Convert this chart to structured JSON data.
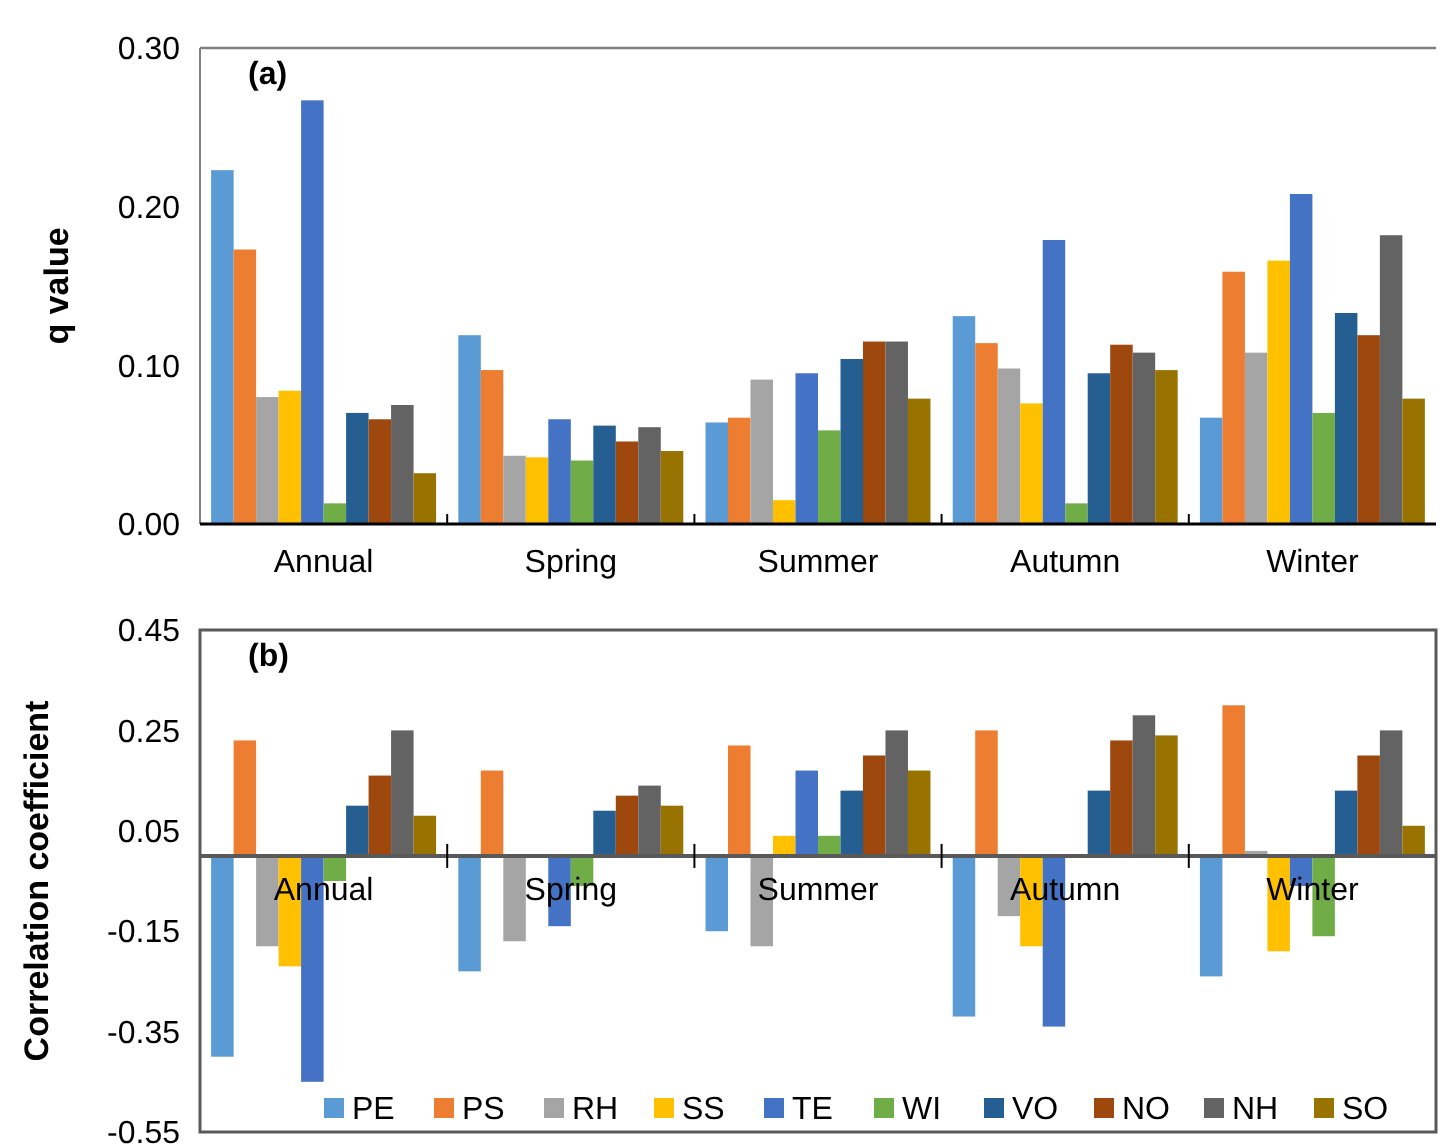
{
  "chart_data": [
    {
      "type": "bar",
      "title": "(a)",
      "ylabel": "q value",
      "categories": [
        "Annual",
        "Spring",
        "Summer",
        "Autumn",
        "Winter"
      ],
      "ylim": [
        0,
        0.3
      ],
      "yticks": [
        {
          "value": 0,
          "label": "0.00"
        },
        {
          "value": 0.1,
          "label": "0.10"
        },
        {
          "value": 0.2,
          "label": "0.20"
        },
        {
          "value": 0.3,
          "label": "0.30"
        }
      ],
      "grid": false,
      "legend": false,
      "series": [
        {
          "color": "#5b9bd5",
          "values": [
            0.223,
            0.119,
            0.064,
            0.131,
            0.067
          ]
        },
        {
          "color": "#ed7d31",
          "values": [
            0.173,
            0.097,
            0.067,
            0.114,
            0.159
          ]
        },
        {
          "color": "#a5a5a5",
          "values": [
            0.08,
            0.043,
            0.091,
            0.098,
            0.108
          ]
        },
        {
          "color": "#ffc000",
          "values": [
            0.084,
            0.042,
            0.015,
            0.076,
            0.166
          ]
        },
        {
          "color": "#4472c4",
          "values": [
            0.267,
            0.066,
            0.095,
            0.179,
            0.208
          ]
        },
        {
          "color": "#70ad47",
          "values": [
            0.013,
            0.04,
            0.059,
            0.013,
            0.07
          ]
        },
        {
          "color": "#255e91",
          "values": [
            0.07,
            0.062,
            0.104,
            0.095,
            0.133
          ]
        },
        {
          "color": "#9e480e",
          "values": [
            0.066,
            0.052,
            0.115,
            0.113,
            0.119
          ]
        },
        {
          "color": "#636363",
          "values": [
            0.075,
            0.061,
            0.115,
            0.108,
            0.182
          ]
        },
        {
          "color": "#997300",
          "values": [
            0.032,
            0.046,
            0.079,
            0.097,
            0.079
          ]
        }
      ]
    },
    {
      "type": "bar",
      "title": "(b)",
      "ylabel": "Correlation coefficient",
      "categories": [
        "Annual",
        "Spring",
        "Summer",
        "Autumn",
        "Winter"
      ],
      "ylim": [
        -0.55,
        0.45
      ],
      "yticks": [
        -0.55,
        -0.35,
        -0.15,
        0.05,
        0.25,
        0.45
      ],
      "grid": false,
      "legend": "bottom",
      "series": [
        {
          "name": "PE",
          "color": "#5b9bd5",
          "values": [
            -0.4,
            -0.23,
            -0.15,
            -0.32,
            -0.24
          ]
        },
        {
          "name": "PS",
          "color": "#ed7d31",
          "values": [
            0.23,
            0.17,
            0.22,
            0.25,
            0.3
          ]
        },
        {
          "name": "RH",
          "color": "#a5a5a5",
          "values": [
            -0.18,
            -0.17,
            -0.18,
            -0.12,
            0.01
          ]
        },
        {
          "name": "SS",
          "color": "#ffc000",
          "values": [
            -0.22,
            0,
            0.04,
            -0.18,
            -0.19
          ]
        },
        {
          "name": "TE",
          "color": "#4472c4",
          "values": [
            -0.45,
            -0.14,
            0.17,
            -0.34,
            -0.06
          ]
        },
        {
          "name": "WI",
          "color": "#70ad47",
          "values": [
            -0.05,
            -0.06,
            0.04,
            0,
            -0.16
          ]
        },
        {
          "name": "VO",
          "color": "#255e91",
          "values": [
            0.1,
            0.09,
            0.13,
            0.13,
            0.13
          ]
        },
        {
          "name": "NO",
          "color": "#9e480e",
          "values": [
            0.16,
            0.12,
            0.2,
            0.23,
            0.2
          ]
        },
        {
          "name": "NH",
          "color": "#636363",
          "values": [
            0.25,
            0.14,
            0.25,
            0.28,
            0.25
          ]
        },
        {
          "name": "SO",
          "color": "#997300",
          "values": [
            0.08,
            0.1,
            0.17,
            0.24,
            0.06
          ]
        }
      ]
    }
  ]
}
